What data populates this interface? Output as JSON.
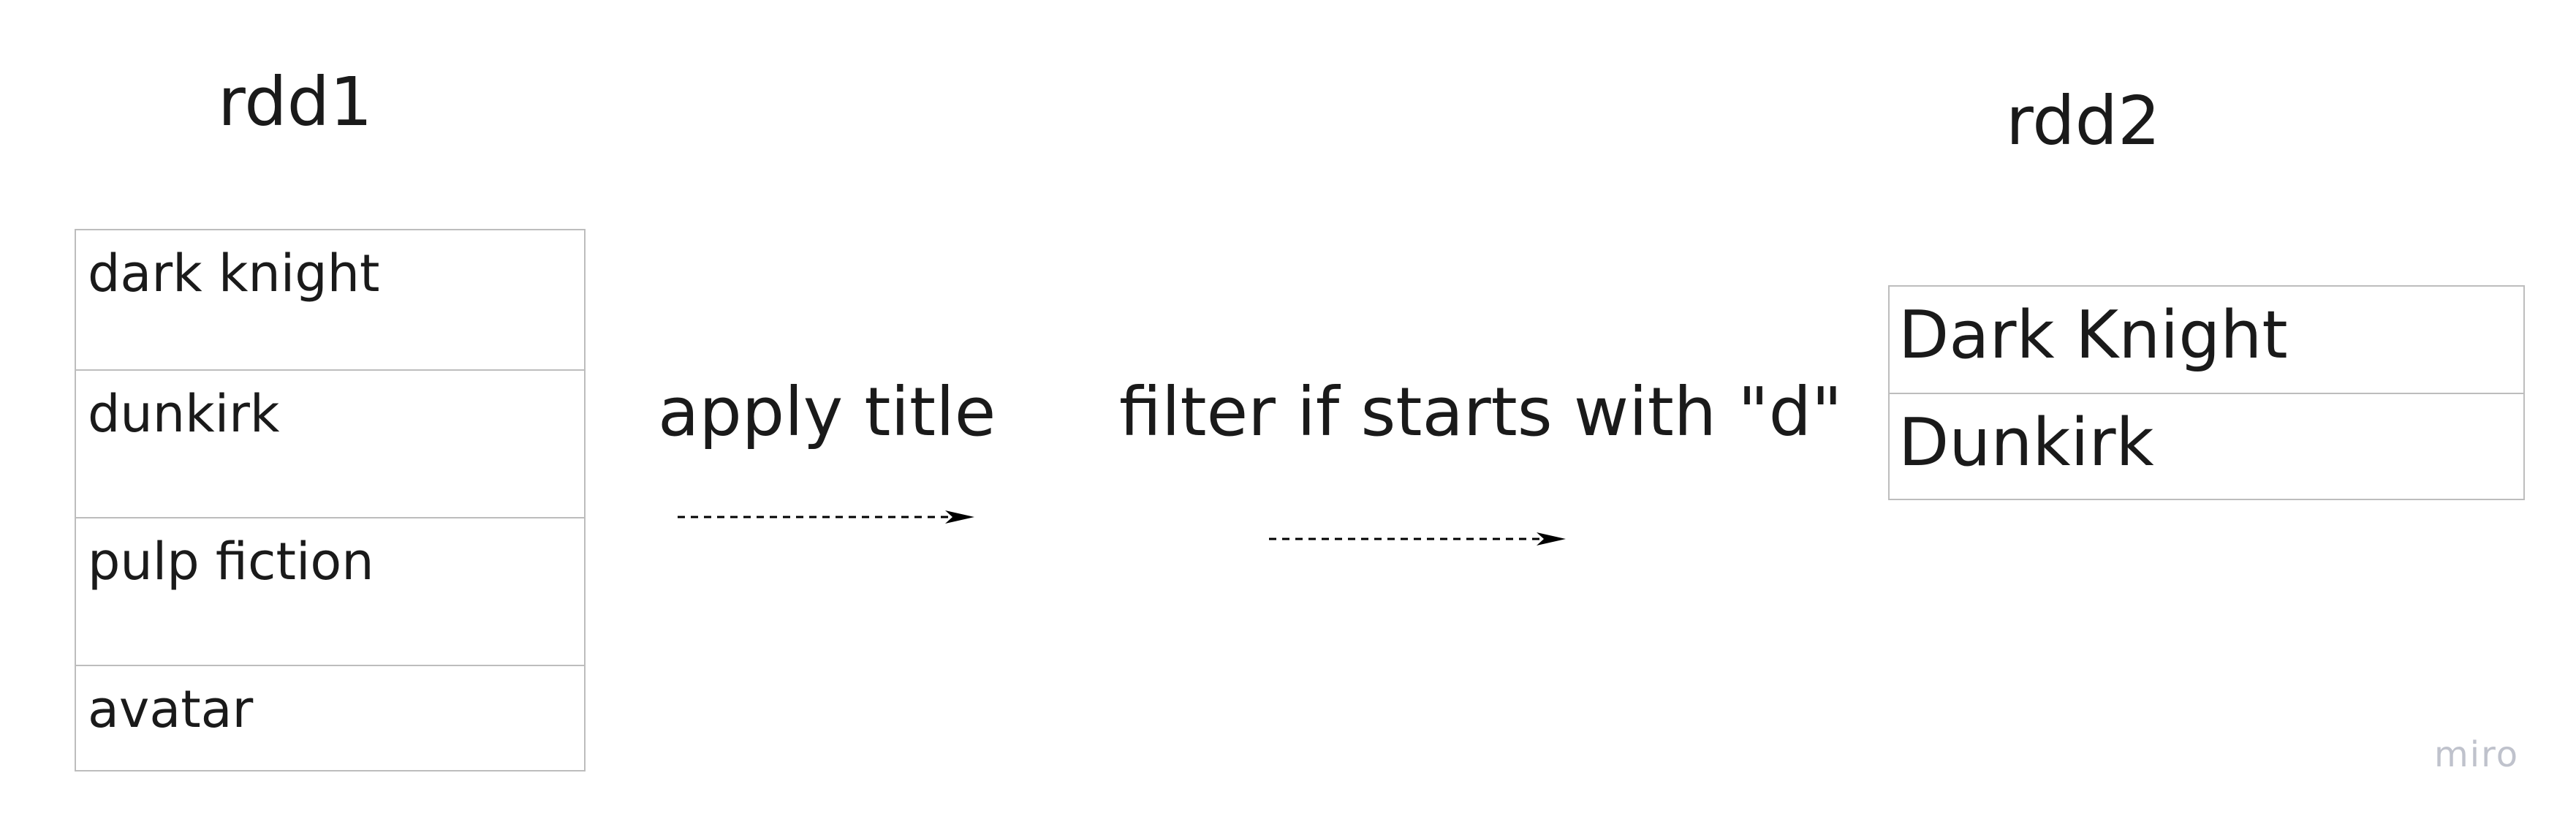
{
  "rdd1": {
    "title": "rdd1",
    "items": [
      "dark knight",
      "dunkirk",
      "pulp fiction",
      "avatar"
    ]
  },
  "rdd2": {
    "title": "rdd2",
    "items": [
      "Dark Knight",
      "Dunkirk"
    ]
  },
  "operations": [
    {
      "label": "apply title"
    },
    {
      "label": "filter if starts with \"d\""
    }
  ],
  "watermark": "miro",
  "colors": {
    "text": "#1a1a1a",
    "border": "#bdbdbd",
    "arrow": "#000000",
    "watermark": "#bfc2cc"
  }
}
